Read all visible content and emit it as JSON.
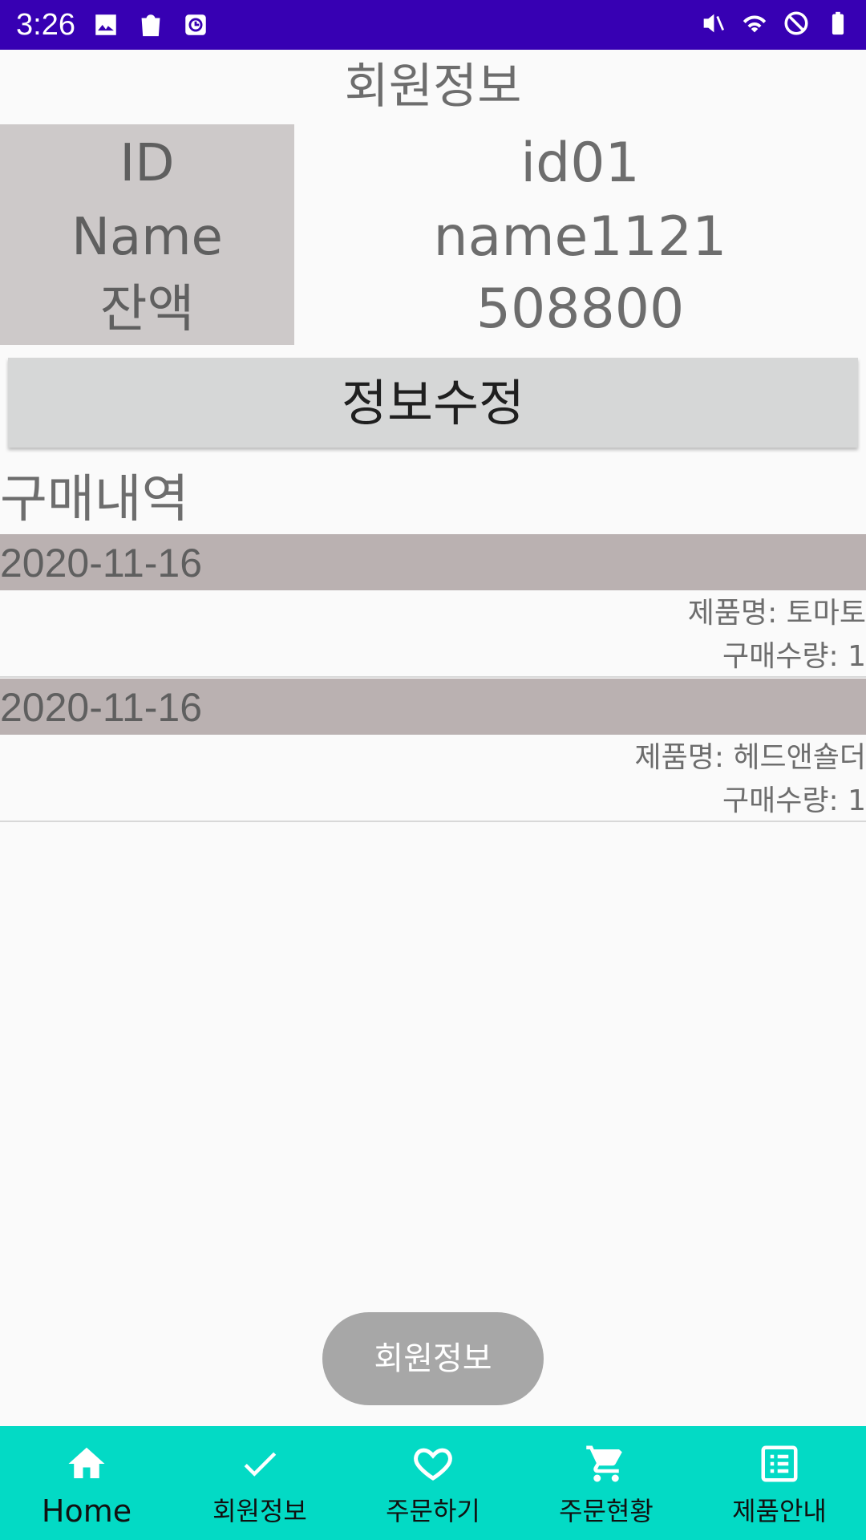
{
  "status_bar": {
    "time": "3:26"
  },
  "header": {
    "title": "회원정보"
  },
  "member": {
    "rows": [
      {
        "label": "ID",
        "value": "id01"
      },
      {
        "label": "Name",
        "value": "name1121"
      },
      {
        "label": "잔액",
        "value": "508800"
      }
    ]
  },
  "edit_button": {
    "label": "정보수정"
  },
  "history": {
    "title": "구매내역",
    "items": [
      {
        "date": "2020-11-16",
        "product": "제품명: 토마토",
        "quantity": "구매수량: 1"
      },
      {
        "date": "2020-11-16",
        "product": "제품명: 헤드앤숄더",
        "quantity": "구매수량: 1"
      }
    ]
  },
  "toast": {
    "text": "회원정보"
  },
  "bottom_nav": {
    "items": [
      {
        "label": "Home",
        "icon": "home-icon"
      },
      {
        "label": "회원정보",
        "icon": "check-icon"
      },
      {
        "label": "주문하기",
        "icon": "heart-icon"
      },
      {
        "label": "주문현황",
        "icon": "cart-icon"
      },
      {
        "label": "제품안내",
        "icon": "list-icon"
      }
    ]
  },
  "colors": {
    "status_bar": "#3700b3",
    "bottom_nav": "#03dac5",
    "label_panel": "#cdc9c9",
    "date_row": "#bab1b1"
  }
}
